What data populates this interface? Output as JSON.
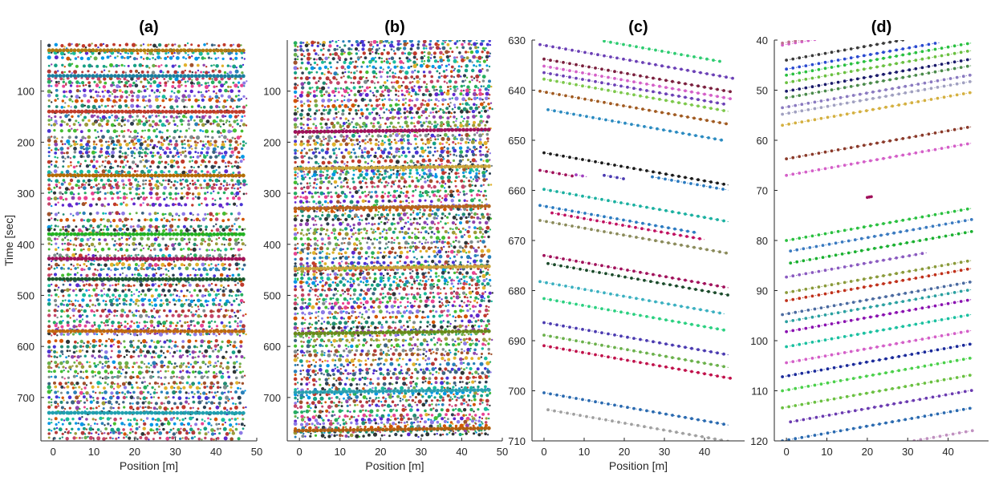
{
  "chart_data": [
    {
      "type": "scatter",
      "title": "(a)",
      "xlabel": "Position [m]",
      "ylabel": "Time [sec]",
      "xlim": [
        -3,
        50
      ],
      "ylim": [
        785,
        0
      ],
      "y_reversed": true,
      "xticks": [
        0,
        10,
        20,
        30,
        40,
        50
      ],
      "yticks": [
        100,
        200,
        300,
        400,
        500,
        600,
        700
      ],
      "x_range": [
        -1,
        47
      ],
      "trajectory_slope_sec_per_m": 0.01,
      "trajectory_start_times": [
        10,
        20,
        25,
        35,
        50,
        62,
        75,
        83,
        90,
        100,
        110,
        118,
        130,
        140,
        150,
        158,
        165,
        178,
        190,
        198,
        205,
        212,
        220,
        228,
        238,
        248,
        258,
        265,
        275,
        283,
        290,
        300,
        310,
        322,
        340,
        352,
        365,
        372,
        380,
        390,
        400,
        410,
        422,
        430,
        440,
        448,
        460,
        470,
        480,
        490,
        500,
        510,
        518,
        530,
        540,
        552,
        560,
        568,
        575,
        590,
        600,
        610,
        620,
        632,
        640,
        650,
        660,
        672,
        680,
        690,
        700,
        710,
        720,
        730,
        742,
        752,
        762,
        770,
        780
      ],
      "highlighted_trajectories": [
        {
          "start": 20,
          "color": "#b07a10"
        },
        {
          "start": 70,
          "color": "#1a7fa0"
        },
        {
          "start": 140,
          "color": "#c23b2a"
        },
        {
          "start": 265,
          "color": "#b56b00"
        },
        {
          "start": 380,
          "color": "#22b322"
        },
        {
          "start": 428,
          "color": "#a0105a"
        },
        {
          "start": 468,
          "color": "#1c5a2c"
        },
        {
          "start": 570,
          "color": "#c06a10"
        },
        {
          "start": 730,
          "color": "#20a0b0"
        }
      ]
    },
    {
      "type": "scatter",
      "title": "(b)",
      "xlabel": "Position [m]",
      "ylabel": "",
      "xlim": [
        -3,
        50
      ],
      "ylim": [
        785,
        0
      ],
      "y_reversed": true,
      "xticks": [
        0,
        10,
        20,
        30,
        40,
        50
      ],
      "yticks": [
        100,
        200,
        300,
        400,
        500,
        600,
        700
      ],
      "x_range": [
        -1,
        47
      ],
      "trajectory_slope_sec_per_m": -0.1,
      "trajectory_start_times": [
        5,
        12,
        20,
        28,
        38,
        45,
        55,
        65,
        75,
        85,
        95,
        102,
        110,
        120,
        130,
        138,
        145,
        155,
        165,
        172,
        180,
        190,
        198,
        205,
        215,
        222,
        230,
        240,
        250,
        258,
        265,
        272,
        280,
        290,
        300,
        308,
        318,
        328,
        335,
        345,
        352,
        362,
        372,
        380,
        390,
        400,
        410,
        418,
        428,
        438,
        445,
        452,
        460,
        468,
        475,
        482,
        490,
        500,
        508,
        516,
        525,
        535,
        545,
        555,
        565,
        572,
        580,
        590,
        600,
        610,
        618,
        628,
        638,
        648,
        655,
        665,
        675,
        685,
        695,
        702,
        710,
        718,
        728,
        738,
        745,
        752,
        760,
        768,
        776
      ],
      "highlighted_trajectories": [
        {
          "start": 180,
          "color": "#a0105a"
        },
        {
          "start": 252,
          "color": "#c9a43a"
        },
        {
          "start": 330,
          "color": "#b5651d"
        },
        {
          "start": 448,
          "color": "#c9a43a"
        },
        {
          "start": 575,
          "color": "#6a8a1a"
        },
        {
          "start": 690,
          "color": "#2aa0b0"
        },
        {
          "start": 765,
          "color": "#b06010"
        }
      ]
    },
    {
      "type": "scatter",
      "title": "(c)",
      "xlabel": "Position [m]",
      "ylabel": "",
      "xlim": [
        -3,
        50
      ],
      "ylim": [
        710,
        630
      ],
      "y_reversed": true,
      "xticks": [
        0,
        10,
        20,
        30,
        40
      ],
      "yticks": [
        630,
        640,
        650,
        660,
        670,
        680,
        690,
        700,
        710
      ],
      "trajectory_slope_sec_per_m": 0.14,
      "series": [
        {
          "x": [
            15,
            44
          ],
          "t_start": 630.2,
          "color": "#2ecc71"
        },
        {
          "x": [
            -1,
            47
          ],
          "t_start": 630.9,
          "color": "#6a3fb5"
        },
        {
          "x": [
            0,
            47
          ],
          "t_start": 633.8,
          "color": "#7a1f3d"
        },
        {
          "x": [
            0,
            47
          ],
          "t_start": 635.2,
          "color": "#d45fc8"
        },
        {
          "x": [
            0,
            45
          ],
          "t_start": 636.5,
          "color": "#6a3fb5"
        },
        {
          "x": [
            0,
            46
          ],
          "t_start": 637.8,
          "color": "#7cc84a"
        },
        {
          "x": [
            -1,
            46
          ],
          "t_start": 640.2,
          "color": "#a05a20"
        },
        {
          "x": [
            1,
            45
          ],
          "t_start": 643.9,
          "color": "#2a8ac0"
        },
        {
          "x": [
            0,
            46
          ],
          "t_start": 652.5,
          "color": "#1a1a1a"
        },
        {
          "x": [
            -1,
            7
          ],
          "t_start": 656.0,
          "color": "#a0105a"
        },
        {
          "x": [
            8,
            11
          ],
          "t_start": 656.9,
          "color": "#a040c0"
        },
        {
          "x": [
            15,
            20
          ],
          "t_start": 657.0,
          "color": "#4a3ab0"
        },
        {
          "x": [
            27,
            46
          ],
          "t_start": 657.3,
          "color": "#2a7ac0"
        },
        {
          "x": [
            0,
            46
          ],
          "t_start": 659.8,
          "color": "#1ab0a0"
        },
        {
          "x": [
            -1,
            38
          ],
          "t_start": 663.0,
          "color": "#2a7ac0"
        },
        {
          "x": [
            2,
            40
          ],
          "t_start": 664.5,
          "color": "#c01060"
        },
        {
          "x": [
            -1,
            46
          ],
          "t_start": 666.0,
          "color": "#8a8a5a"
        },
        {
          "x": [
            0,
            46
          ],
          "t_start": 673.0,
          "color": "#a0105a"
        },
        {
          "x": [
            1,
            46
          ],
          "t_start": 674.6,
          "color": "#1a4a2a"
        },
        {
          "x": [
            -1,
            45
          ],
          "t_start": 678.2,
          "color": "#3ab0c0"
        },
        {
          "x": [
            0,
            45
          ],
          "t_start": 681.6,
          "color": "#2ad080"
        },
        {
          "x": [
            0,
            46
          ],
          "t_start": 686.4,
          "color": "#4a3ab0"
        },
        {
          "x": [
            0,
            46
          ],
          "t_start": 688.9,
          "color": "#6ab04a"
        },
        {
          "x": [
            0,
            47
          ],
          "t_start": 691.0,
          "color": "#c0104a"
        },
        {
          "x": [
            0,
            46
          ],
          "t_start": 700.4,
          "color": "#2a6ab0"
        },
        {
          "x": [
            1,
            47
          ],
          "t_start": 703.8,
          "color": "#a0a0a0"
        }
      ]
    },
    {
      "type": "scatter",
      "title": "(d)",
      "xlabel": "",
      "ylabel": "",
      "xlim": [
        -3,
        50
      ],
      "ylim": [
        120,
        40
      ],
      "y_reversed": true,
      "xticks": [
        0,
        10,
        20,
        30,
        40
      ],
      "yticks": [
        40,
        50,
        60,
        70,
        80,
        90,
        100,
        110,
        120
      ],
      "trajectory_slope_sec_per_m": -0.14,
      "series": [
        {
          "x": [
            -1,
            11
          ],
          "t_start": 41.0,
          "color": "#d45fc8"
        },
        {
          "x": [
            -1,
            10
          ],
          "t_start": 40.6,
          "color": "#c07090"
        },
        {
          "x": [
            0,
            30
          ],
          "t_start": 44.0,
          "color": "#3a3a3a"
        },
        {
          "x": [
            0,
            38
          ],
          "t_start": 45.8,
          "color": "#2a4ad0"
        },
        {
          "x": [
            0,
            46
          ],
          "t_start": 47.0,
          "color": "#2ac040"
        },
        {
          "x": [
            0,
            46
          ],
          "t_start": 48.5,
          "color": "#6ac040"
        },
        {
          "x": [
            0,
            46
          ],
          "t_start": 50.2,
          "color": "#1a1a6a"
        },
        {
          "x": [
            0,
            46
          ],
          "t_start": 51.5,
          "color": "#4a8a4a"
        },
        {
          "x": [
            -1,
            46
          ],
          "t_start": 53.5,
          "color": "#8a7ac0"
        },
        {
          "x": [
            -1,
            46
          ],
          "t_start": 54.8,
          "color": "#a0a0c0"
        },
        {
          "x": [
            -1,
            46
          ],
          "t_start": 57.0,
          "color": "#d4b040"
        },
        {
          "x": [
            0,
            46
          ],
          "t_start": 63.7,
          "color": "#8a3a2a"
        },
        {
          "x": [
            0,
            46
          ],
          "t_start": 67.0,
          "color": "#d45fc8"
        },
        {
          "x": [
            20,
            21
          ],
          "t_start": 71.4,
          "color": "#a0105a"
        },
        {
          "x": [
            0,
            46
          ],
          "t_start": 80.0,
          "color": "#2ac040"
        },
        {
          "x": [
            1,
            46
          ],
          "t_start": 82.1,
          "color": "#3a7ac0"
        },
        {
          "x": [
            1,
            46
          ],
          "t_start": 84.5,
          "color": "#1ab030"
        },
        {
          "x": [
            0,
            35
          ],
          "t_start": 87.3,
          "color": "#8a5ac0"
        },
        {
          "x": [
            0,
            46
          ],
          "t_start": 90.4,
          "color": "#8a9a3a"
        },
        {
          "x": [
            0,
            46
          ],
          "t_start": 92.0,
          "color": "#c0301a"
        },
        {
          "x": [
            -1,
            46
          ],
          "t_start": 94.8,
          "color": "#4a6aa0"
        },
        {
          "x": [
            0,
            46
          ],
          "t_start": 96.2,
          "color": "#2aa0a0"
        },
        {
          "x": [
            0,
            46
          ],
          "t_start": 98.2,
          "color": "#8a10b0"
        },
        {
          "x": [
            0,
            46
          ],
          "t_start": 101.2,
          "color": "#1ac0a0"
        },
        {
          "x": [
            0,
            46
          ],
          "t_start": 104.4,
          "color": "#d45fc8"
        },
        {
          "x": [
            -1,
            46
          ],
          "t_start": 107.2,
          "color": "#1a2a9a"
        },
        {
          "x": [
            -1,
            46
          ],
          "t_start": 110.0,
          "color": "#4ad04a"
        },
        {
          "x": [
            -1,
            46
          ],
          "t_start": 113.4,
          "color": "#6ac040"
        },
        {
          "x": [
            1,
            46
          ],
          "t_start": 116.2,
          "color": "#6a3ab0"
        },
        {
          "x": [
            -1,
            46
          ],
          "t_start": 120.0,
          "color": "#2a6ab0"
        },
        {
          "x": [
            30,
            46
          ],
          "t_start": 120.2,
          "color": "#c090c0"
        }
      ]
    }
  ]
}
